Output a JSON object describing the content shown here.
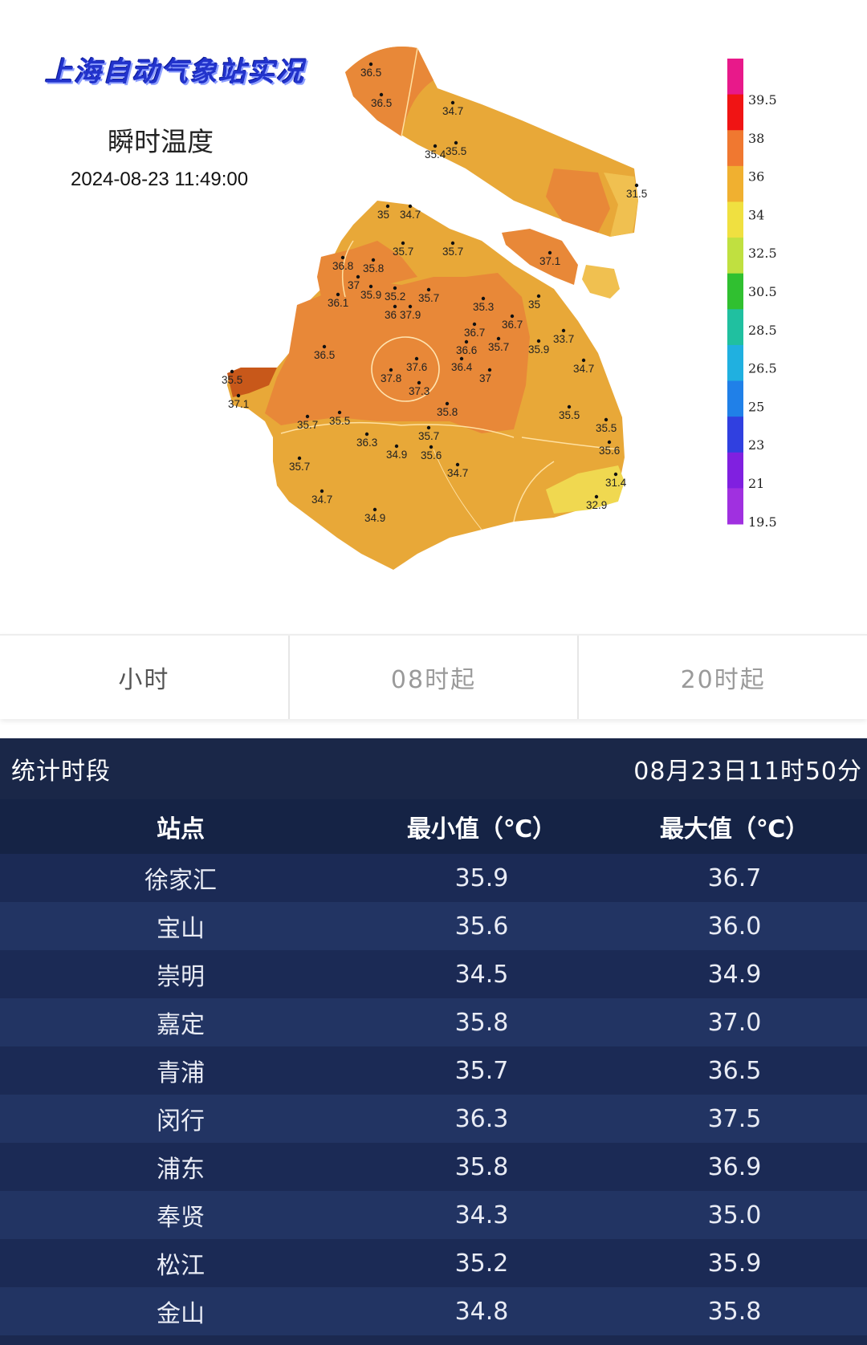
{
  "map": {
    "brand": "上海自动气象站实况",
    "heading": "瞬时温度",
    "time": "2024-08-23 11:49:00",
    "legend": {
      "labels": [
        "39.5",
        "38",
        "36",
        "34",
        "32.5",
        "30.5",
        "28.5",
        "26.5",
        "25",
        "23",
        "21",
        "19.5"
      ],
      "colors": [
        "#e8198a",
        "#f01414",
        "#f07830",
        "#f0b030",
        "#f0e040",
        "#c0e040",
        "#30c030",
        "#20c0a0",
        "#20b0e0",
        "#2080e8",
        "#3040e0",
        "#8020e0",
        "#a030e0"
      ]
    },
    "station_values": [
      "36.5",
      "36.5",
      "34.7",
      "35.4",
      "35.5",
      "31.5",
      "35",
      "34.7",
      "35.7",
      "35.7",
      "37.1",
      "36.8",
      "35.8",
      "37",
      "35.9",
      "35.2",
      "35.7",
      "36.1",
      "36",
      "37.9",
      "35.3",
      "35",
      "36.7",
      "36.7",
      "35.7",
      "33.7",
      "35.9",
      "36.5",
      "36.6",
      "36.4",
      "37.6",
      "34.7",
      "37.8",
      "37",
      "37.3",
      "35.5",
      "37.1",
      "35.8",
      "35.5",
      "35.5",
      "35.7",
      "35.5",
      "36.3",
      "35.7",
      "34.9",
      "35.6",
      "35.6",
      "35.7",
      "34.7",
      "31.4",
      "32.9",
      "34.7",
      "34.9"
    ]
  },
  "tabs": [
    {
      "label": "小时"
    },
    {
      "label": "08时起"
    },
    {
      "label": "20时起"
    }
  ],
  "stats": {
    "title": "统计时段",
    "period": "08月23日11时50分",
    "columns": [
      "站点",
      "最小值（℃）",
      "最大值（℃）"
    ],
    "rows": [
      {
        "station": "徐家汇",
        "min": "35.9",
        "max": "36.7"
      },
      {
        "station": "宝山",
        "min": "35.6",
        "max": "36.0"
      },
      {
        "station": "崇明",
        "min": "34.5",
        "max": "34.9"
      },
      {
        "station": "嘉定",
        "min": "35.8",
        "max": "37.0"
      },
      {
        "station": "青浦",
        "min": "35.7",
        "max": "36.5"
      },
      {
        "station": "闵行",
        "min": "36.3",
        "max": "37.5"
      },
      {
        "station": "浦东",
        "min": "35.8",
        "max": "36.9"
      },
      {
        "station": "奉贤",
        "min": "34.3",
        "max": "35.0"
      },
      {
        "station": "松江",
        "min": "35.2",
        "max": "35.9"
      },
      {
        "station": "金山",
        "min": "34.8",
        "max": "35.8"
      }
    ]
  }
}
